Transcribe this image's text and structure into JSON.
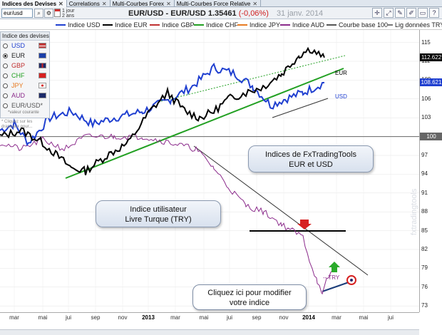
{
  "tabs": [
    {
      "label": "Indices des Devises",
      "active": true
    },
    {
      "label": "Correlations",
      "active": false
    },
    {
      "label": "Multi-Courbes Forex",
      "active": false
    },
    {
      "label": "Multi-Courbes Force Relative",
      "active": false
    }
  ],
  "toolbar": {
    "search_value": "eur/usd",
    "period_line1": "1 jour",
    "period_line2": "2 ans",
    "symbol": "EUR/USD - EUR/USD",
    "price": "1.35461",
    "change": "(-0,06%)",
    "date": "31 janv. 2014",
    "icons": [
      "crosshair-icon",
      "zoom-icon",
      "edit-icon",
      "pencil-icon",
      "ruler-icon",
      "help-icon"
    ]
  },
  "legend": [
    {
      "label": "Indice USD",
      "color": "#1f3fd0"
    },
    {
      "label": "Indice EUR",
      "color": "#000000"
    },
    {
      "label": "Indice GBP",
      "color": "#c03030"
    },
    {
      "label": "Indice CHF",
      "color": "#22a022"
    },
    {
      "label": "Indice JPY",
      "color": "#e87b22"
    },
    {
      "label": "Indice AUD",
      "color": "#8b2a8b"
    },
    {
      "label": "Courbe base 100",
      "color": "#555555"
    },
    {
      "label": "Lig données TRY",
      "color": "#777777"
    }
  ],
  "panel": {
    "title": "Indice des devises",
    "currencies": [
      {
        "code": "USD",
        "selected": false,
        "color": "#1f3fd0"
      },
      {
        "code": "EUR",
        "selected": true,
        "color": "#000000"
      },
      {
        "code": "GBP",
        "selected": false,
        "color": "#c03030"
      },
      {
        "code": "CHF",
        "selected": false,
        "color": "#22a022"
      },
      {
        "code": "JPY",
        "selected": false,
        "color": "#e87b22"
      },
      {
        "code": "AUD",
        "selected": false,
        "color": "#8b2a8b"
      }
    ],
    "pair": "EUR/USD*",
    "pair_note": "*valeur courante",
    "side_note": "* Cliquez sur les drapeaux pour..."
  },
  "chart_data": {
    "type": "line",
    "x": [
      "mar",
      "mai",
      "jui",
      "sep",
      "nov",
      "2013",
      "mar",
      "mai",
      "jui",
      "sep",
      "nov",
      "2014",
      "mar",
      "mai",
      "jui"
    ],
    "ylim": [
      72,
      117
    ],
    "yticks": [
      "115",
      "112",
      "109",
      "106",
      "103",
      "100",
      "97",
      "94",
      "91",
      "88",
      "85",
      "82",
      "79",
      "76",
      "73"
    ],
    "badges": [
      {
        "label": "112.622",
        "color": "#000000"
      },
      {
        "label": "108.621",
        "color": "#1f3fd0"
      },
      {
        "label": "100",
        "color": "#666666"
      }
    ],
    "line_labels": [
      "EUR",
      "USD",
      "-- TRY"
    ],
    "series": [
      {
        "name": "Indice USD",
        "color": "#1f3fd0"
      },
      {
        "name": "Indice EUR",
        "color": "#000000"
      },
      {
        "name": "Indice AUD",
        "color": "#8b2a8b"
      }
    ]
  },
  "annotations": {
    "fxtt": [
      "Indices de FxTradingTools",
      "EUR et USD"
    ],
    "try": [
      "Indice utilisateur",
      "Livre Turque (TRY)"
    ],
    "edit": [
      "Cliquez ici pour modifier",
      "votre indice"
    ]
  },
  "watermark": "fxtradingtools"
}
